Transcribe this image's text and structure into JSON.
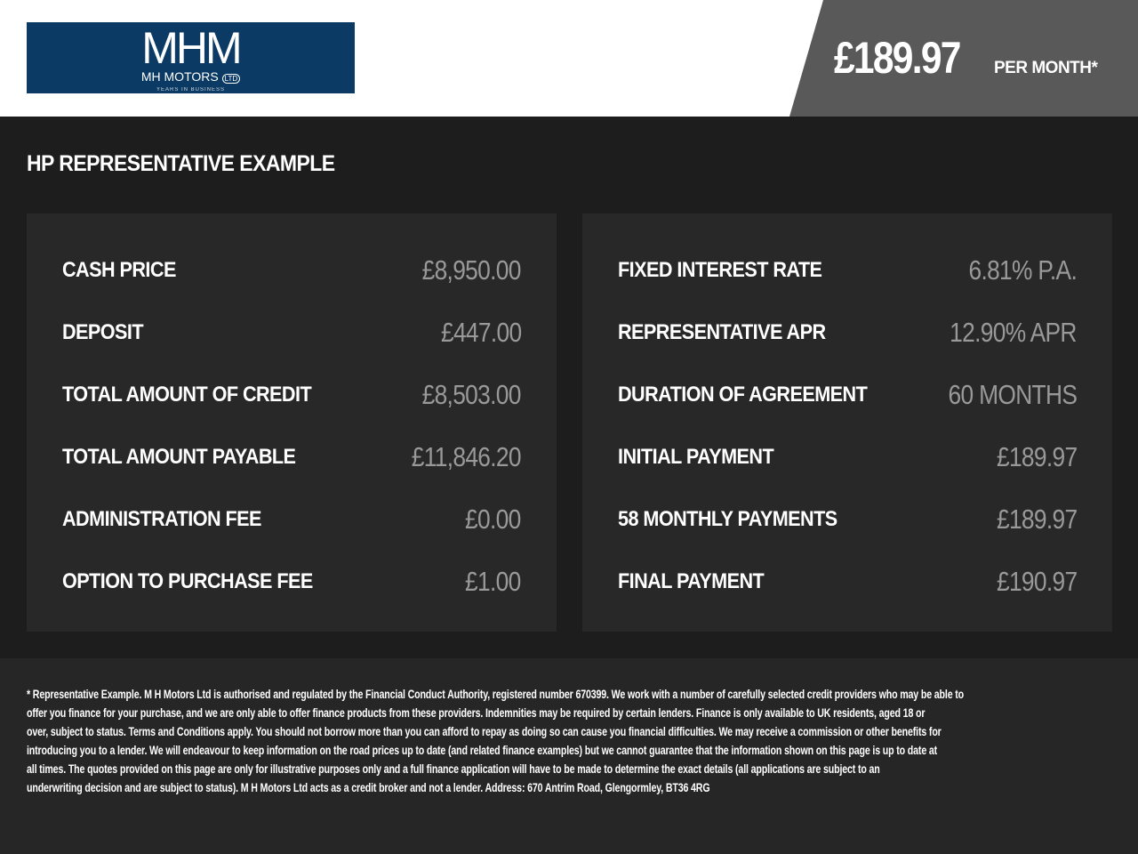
{
  "header": {
    "logo": {
      "mark": "MHM",
      "name": "MH MOTORS",
      "badge": "LTD",
      "tagline": "YEARS IN BUSINESS"
    },
    "monthly_price": "£189.97",
    "per_month": "PER MONTH*",
    "panel_color": "#595959",
    "logo_color": "#0b3a64"
  },
  "section_title": "HP REPRESENTATIVE EXAMPLE",
  "left": [
    {
      "label": "CASH PRICE",
      "value": "£8,950.00"
    },
    {
      "label": "DEPOSIT",
      "value": "£447.00"
    },
    {
      "label": "TOTAL AMOUNT OF CREDIT",
      "value": "£8,503.00"
    },
    {
      "label": "TOTAL AMOUNT PAYABLE",
      "value": "£11,846.20"
    },
    {
      "label": "ADMINISTRATION FEE",
      "value": "£0.00"
    },
    {
      "label": "OPTION TO PURCHASE FEE",
      "value": "£1.00"
    }
  ],
  "right": [
    {
      "label": "FIXED INTEREST RATE",
      "value": "6.81% P.A."
    },
    {
      "label": "REPRESENTATIVE APR",
      "value": "12.90% APR"
    },
    {
      "label": "DURATION OF AGREEMENT",
      "value": "60 MONTHS"
    },
    {
      "label": "INITIAL PAYMENT",
      "value": "£189.97"
    },
    {
      "label": "58 MONTHLY PAYMENTS",
      "value": "£189.97"
    },
    {
      "label": "FINAL PAYMENT",
      "value": "£190.97"
    }
  ],
  "disclaimer": [
    "* Representative Example. M H Motors Ltd is authorised and regulated by the Financial Conduct Authority, registered number 670399. We work with a number of carefully selected credit providers who may be able to",
    "offer you finance for your purchase, and we are only able to offer finance products from these providers. Indemnities may be required by certain lenders. Finance is only available to UK residents, aged 18 or",
    "over, subject to status. Terms and Conditions apply. You should not borrow more than you can afford to repay as doing so can cause you financial difficulties. We may receive a commission or other benefits for",
    "introducing you to a lender. We will endeavour to keep information on the road prices up to date (and related finance examples) but we cannot guarantee that the information shown on this page is up to date at",
    "all times. The quotes provided on this page are only for illustrative purposes only and a full finance application will have to be made to determine the exact details (all applications are subject to an",
    "underwriting decision and are subject to status). M H Motors Ltd acts as a credit broker and not a lender. Address: 670 Antrim Road, Glengormley, BT36 4RG"
  ]
}
